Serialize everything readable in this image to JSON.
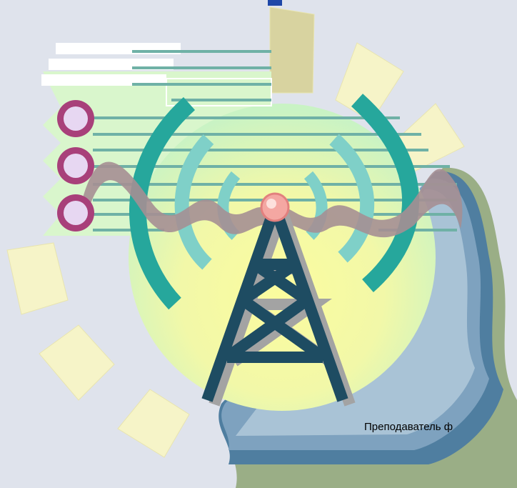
{
  "caption": "Преподаватель ф"
}
